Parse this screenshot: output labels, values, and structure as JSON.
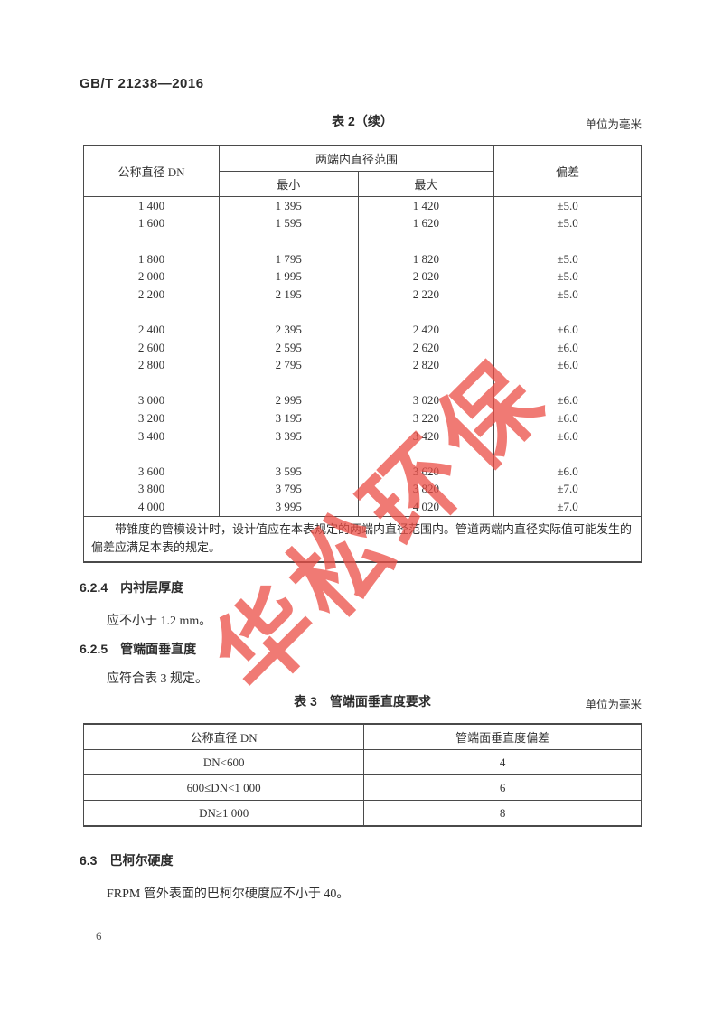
{
  "page": {
    "doc_header": "GB/T 21238—2016",
    "page_number": "6",
    "watermark_text": "华松环保",
    "watermark_color": "#eb4d45"
  },
  "table2": {
    "caption": "表 2（续）",
    "unit_note": "单位为毫米",
    "header": {
      "col_dn": "公称直径 DN",
      "col_range": "两端内直径范围",
      "col_min": "最小",
      "col_max": "最大",
      "col_dev": "偏差"
    },
    "groups": [
      [
        [
          "1 400",
          "1 395",
          "1 420",
          "±5.0"
        ],
        [
          "1 600",
          "1 595",
          "1 620",
          "±5.0"
        ]
      ],
      [
        [
          "1 800",
          "1 795",
          "1 820",
          "±5.0"
        ],
        [
          "2 000",
          "1 995",
          "2 020",
          "±5.0"
        ],
        [
          "2 200",
          "2 195",
          "2 220",
          "±5.0"
        ]
      ],
      [
        [
          "2 400",
          "2 395",
          "2 420",
          "±6.0"
        ],
        [
          "2 600",
          "2 595",
          "2 620",
          "±6.0"
        ],
        [
          "2 800",
          "2 795",
          "2 820",
          "±6.0"
        ]
      ],
      [
        [
          "3 000",
          "2 995",
          "3 020",
          "±6.0"
        ],
        [
          "3 200",
          "3 195",
          "3 220",
          "±6.0"
        ],
        [
          "3 400",
          "3 395",
          "3 420",
          "±6.0"
        ]
      ],
      [
        [
          "3 600",
          "3 595",
          "3 620",
          "±6.0"
        ],
        [
          "3 800",
          "3 795",
          "3 820",
          "±7.0"
        ],
        [
          "4 000",
          "3 995",
          "4 020",
          "±7.0"
        ]
      ]
    ],
    "footnote": "带锥度的管模设计时，设计值应在本表规定的两端内直径范围内。管道两端内直径实际值可能发生的偏差应满足本表的规定。"
  },
  "section_624": {
    "number": "6.2.4",
    "title": "内衬层厚度",
    "body": "应不小于 1.2 mm。"
  },
  "section_625": {
    "number": "6.2.5",
    "title": "管端面垂直度",
    "body": "应符合表 3 规定。"
  },
  "table3": {
    "caption": "表 3　管端面垂直度要求",
    "unit_note": "单位为毫米",
    "header": {
      "col_dn": "公称直径 DN",
      "col_dev": "管端面垂直度偏差"
    },
    "rows": [
      [
        "DN<600",
        "4"
      ],
      [
        "600≤DN<1 000",
        "6"
      ],
      [
        "DN≥1 000",
        "8"
      ]
    ]
  },
  "section_63": {
    "number": "6.3",
    "title": "巴柯尔硬度",
    "body": "FRPM 管外表面的巴柯尔硬度应不小于 40。"
  }
}
